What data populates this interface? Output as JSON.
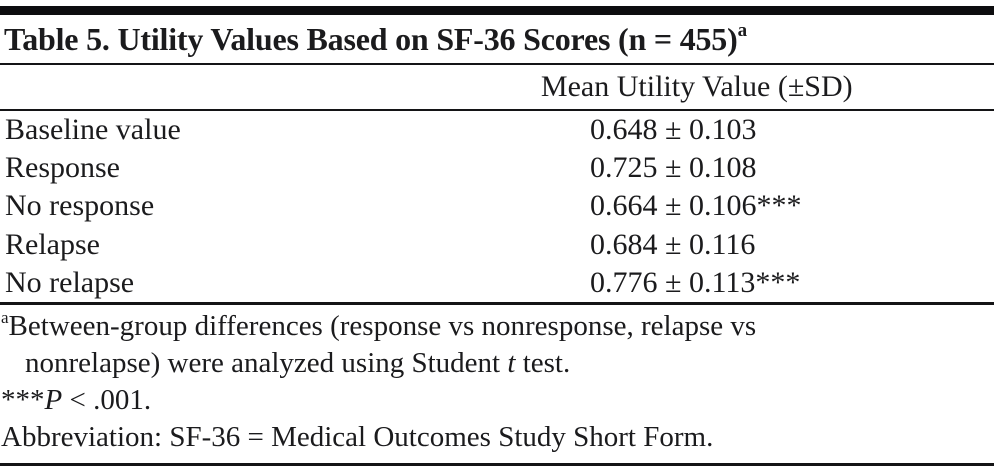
{
  "title": {
    "main": "Table 5. Utility Values Based on SF-36 Scores (n = 455)",
    "footnote_marker": "a"
  },
  "table": {
    "value_column_header": "Mean Utility Value (±SD)",
    "rows": [
      {
        "label": "Baseline value",
        "value": "0.648 ± 0.103"
      },
      {
        "label": "Response",
        "value": "0.725 ± 0.108"
      },
      {
        "label": "No response",
        "value": "0.664 ± 0.106***"
      },
      {
        "label": "Relapse",
        "value": "0.684 ± 0.116"
      },
      {
        "label": "No relapse",
        "value": "0.776 ± 0.113***"
      }
    ]
  },
  "footnotes": {
    "a": {
      "marker": "a",
      "line1": "Between-group differences (response vs nonresponse, relapse vs",
      "line2_pre": "nonrelapse) were analyzed using Student ",
      "line2_italic": "t",
      "line2_post": " test."
    },
    "significance": {
      "stars": "***",
      "symbol": "P",
      "rest": " < .001."
    },
    "abbreviation": "Abbreviation: SF-36 = Medical Outcomes Study Short Form."
  },
  "colors": {
    "text": "#1b1b1d",
    "rule": "#141416",
    "background": "#ffffff"
  }
}
